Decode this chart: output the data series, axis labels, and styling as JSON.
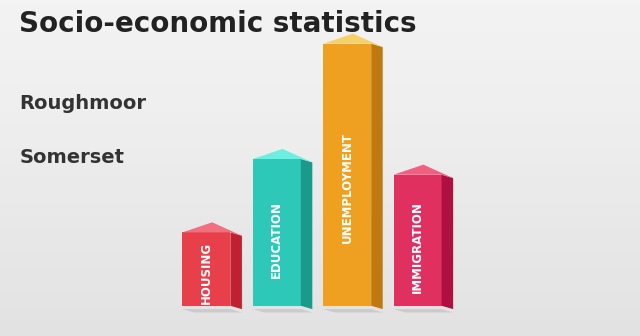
{
  "title": "Socio-economic statistics",
  "subtitle1": "Roughmoor",
  "subtitle2": "Somerset",
  "categories": [
    "HOUSING",
    "EDUCATION",
    "UNEMPLOYMENT",
    "IMMIGRATION"
  ],
  "values": [
    0.28,
    0.56,
    1.0,
    0.5
  ],
  "bar_colors": [
    "#E8404A",
    "#2EC8B8",
    "#F0A020",
    "#E03060"
  ],
  "bar_right_colors": [
    "#C02030",
    "#1A9A8A",
    "#C07810",
    "#B01040"
  ],
  "bar_top_colors": [
    "#F07080",
    "#6EEEE0",
    "#F8D068",
    "#F06080"
  ],
  "shadow_color": "#BBBBBB",
  "background_top": "#E0E0E0",
  "background_bottom": "#C8C8C8",
  "title_color": "#222222",
  "subtitle_color": "#333333",
  "title_fontsize": 20,
  "subtitle_fontsize": 14,
  "label_fontsize": 8.5
}
